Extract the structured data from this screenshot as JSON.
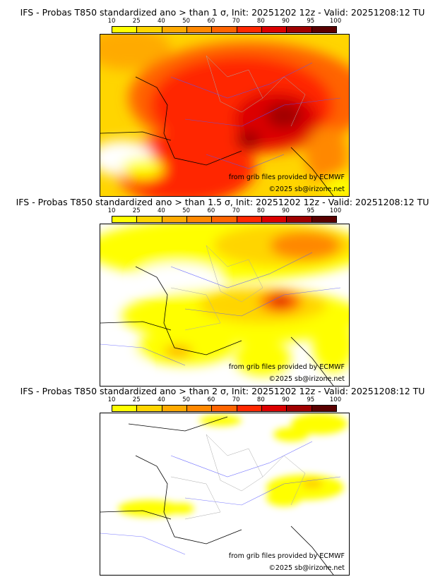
{
  "colorbar": {
    "ticks": [
      "10",
      "25",
      "40",
      "50",
      "60",
      "70",
      "80",
      "90",
      "95",
      "100"
    ],
    "colors": [
      "#ffff00",
      "#ffd500",
      "#ffaa00",
      "#ff8800",
      "#ff6400",
      "#ff2800",
      "#dc0000",
      "#a00000",
      "#5a0000"
    ]
  },
  "panels": [
    {
      "title": "IFS - Probas T850  standardized ano > than 1 σ, Init: 20251202 12z - Valid: 20251208:12 TU"
    },
    {
      "title": "IFS - Probas T850  standardized ano > than 1.5 σ, Init: 20251202 12z - Valid: 20251208:12 TU"
    },
    {
      "title": "IFS - Probas T850  standardized ano > than 2 σ, Init: 20251202 12z - Valid: 20251208:12 TU"
    }
  ],
  "credits": {
    "source": "from grib files provided by ECMWF",
    "copyright": "©2025 sb@irizone.net"
  }
}
